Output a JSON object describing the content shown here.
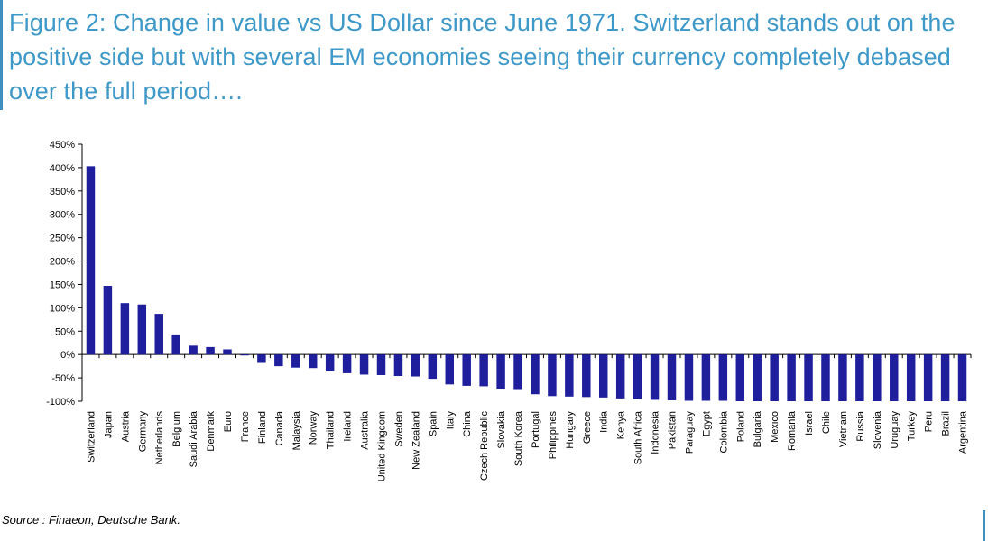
{
  "title": "Figure 2: Change in value vs US Dollar since June 1971. Switzerland stands out on the positive side but with several EM economies seeing their currency completely debased over the full period….",
  "source": "Source : Finaeon, Deutsche Bank.",
  "colors": {
    "bar": "#1f1f9e",
    "title": "#3e98c8",
    "rule": "#3f8fc0",
    "axis": "#000000"
  },
  "chart_data": {
    "type": "bar",
    "title": "",
    "xlabel": "",
    "ylabel": "",
    "ylim": [
      -100,
      450
    ],
    "yticks": [
      -100,
      -50,
      0,
      50,
      100,
      150,
      200,
      250,
      300,
      350,
      400,
      450
    ],
    "ytick_labels": [
      "-100%",
      "-50%",
      "0%",
      "50%",
      "100%",
      "150%",
      "200%",
      "250%",
      "300%",
      "350%",
      "400%",
      "450%"
    ],
    "grid": false,
    "legend": "none",
    "categories": [
      "Switzerland",
      "Japan",
      "Austria",
      "Germany",
      "Netherlands",
      "Belgium",
      "Saudi Arabia",
      "Denmark",
      "Euro",
      "France",
      "Finland",
      "Canada",
      "Malaysia",
      "Norway",
      "Thailand",
      "Ireland",
      "Australia",
      "United Kingdom",
      "Sweden",
      "New Zealand",
      "Spain",
      "Italy",
      "China",
      "Czech Republic",
      "Slovakia",
      "South Korea",
      "Portugal",
      "Philippines",
      "Hungary",
      "Greece",
      "India",
      "Kenya",
      "South Africa",
      "Indonesia",
      "Pakistan",
      "Paraguay",
      "Egypt",
      "Colombia",
      "Poland",
      "Bulgaria",
      "Mexico",
      "Romania",
      "Israel",
      "Chile",
      "Vietnam",
      "Russia",
      "Slovenia",
      "Uruguay",
      "Turkey",
      "Peru",
      "Brazil",
      "Argentina"
    ],
    "values": [
      403,
      147,
      110,
      107,
      87,
      43,
      19,
      16,
      11,
      -2,
      -18,
      -25,
      -28,
      -29,
      -36,
      -40,
      -43,
      -44,
      -46,
      -47,
      -52,
      -64,
      -67,
      -68,
      -73,
      -74,
      -85,
      -89,
      -90,
      -91,
      -92,
      -94,
      -96,
      -97,
      -98,
      -99,
      -99,
      -99,
      -100,
      -100,
      -100,
      -100,
      -100,
      -100,
      -100,
      -100,
      -100,
      -100,
      -100,
      -100,
      -100,
      -100
    ]
  }
}
